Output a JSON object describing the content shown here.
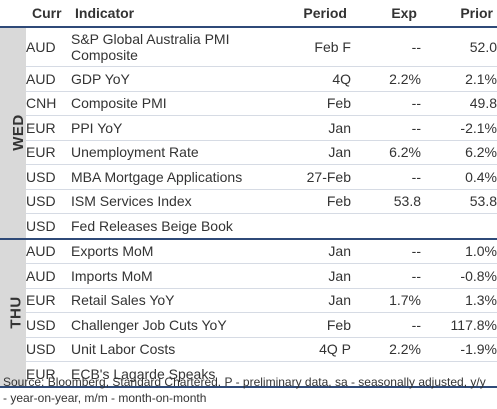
{
  "header": {
    "curr": "Curr",
    "indicator": "Indicator",
    "period": "Period",
    "exp": "Exp",
    "prior": "Prior"
  },
  "days": [
    {
      "label": "WED",
      "rows": [
        {
          "curr": "AUD",
          "indicator": "S&P Global Australia PMI Composite",
          "period": "Feb F",
          "exp": "--",
          "prior": "52.0"
        },
        {
          "curr": "AUD",
          "indicator": "GDP YoY",
          "period": "4Q",
          "exp": "2.2%",
          "prior": "2.1%"
        },
        {
          "curr": "CNH",
          "indicator": "Composite PMI",
          "period": "Feb",
          "exp": "--",
          "prior": "49.8"
        },
        {
          "curr": "EUR",
          "indicator": "PPI YoY",
          "period": "Jan",
          "exp": "--",
          "prior": "-2.1%"
        },
        {
          "curr": "EUR",
          "indicator": "Unemployment Rate",
          "period": "Jan",
          "exp": "6.2%",
          "prior": "6.2%"
        },
        {
          "curr": "USD",
          "indicator": "MBA Mortgage Applications",
          "period": "27-Feb",
          "exp": "--",
          "prior": "0.4%"
        },
        {
          "curr": "USD",
          "indicator": "ISM Services Index",
          "period": "Feb",
          "exp": "53.8",
          "prior": "53.8"
        },
        {
          "curr": "USD",
          "indicator": "Fed Releases Beige Book",
          "period": "",
          "exp": "",
          "prior": ""
        }
      ]
    },
    {
      "label": "THU",
      "rows": [
        {
          "curr": "AUD",
          "indicator": "Exports MoM",
          "period": "Jan",
          "exp": "--",
          "prior": "1.0%"
        },
        {
          "curr": "AUD",
          "indicator": "Imports MoM",
          "period": "Jan",
          "exp": "--",
          "prior": "-0.8%"
        },
        {
          "curr": "EUR",
          "indicator": "Retail Sales YoY",
          "period": "Jan",
          "exp": "1.7%",
          "prior": "1.3%"
        },
        {
          "curr": "USD",
          "indicator": "Challenger Job Cuts YoY",
          "period": "Feb",
          "exp": "--",
          "prior": "117.8%"
        },
        {
          "curr": "USD",
          "indicator": "Unit Labor Costs",
          "period": "4Q P",
          "exp": "2.2%",
          "prior": "-1.9%"
        },
        {
          "curr": "EUR",
          "indicator": "ECB's Lagarde Speaks",
          "period": "",
          "exp": "",
          "prior": ""
        }
      ]
    }
  ],
  "footnote": "Source: Bloomberg, Standard Chartered. P - preliminary data, sa - seasonally adjusted, y/y - year-on-year, m/m - month-on-month",
  "colors": {
    "rule": "#2f4a78",
    "day_band": "#d9d9d9",
    "row_divider": "#d6dbe4"
  }
}
